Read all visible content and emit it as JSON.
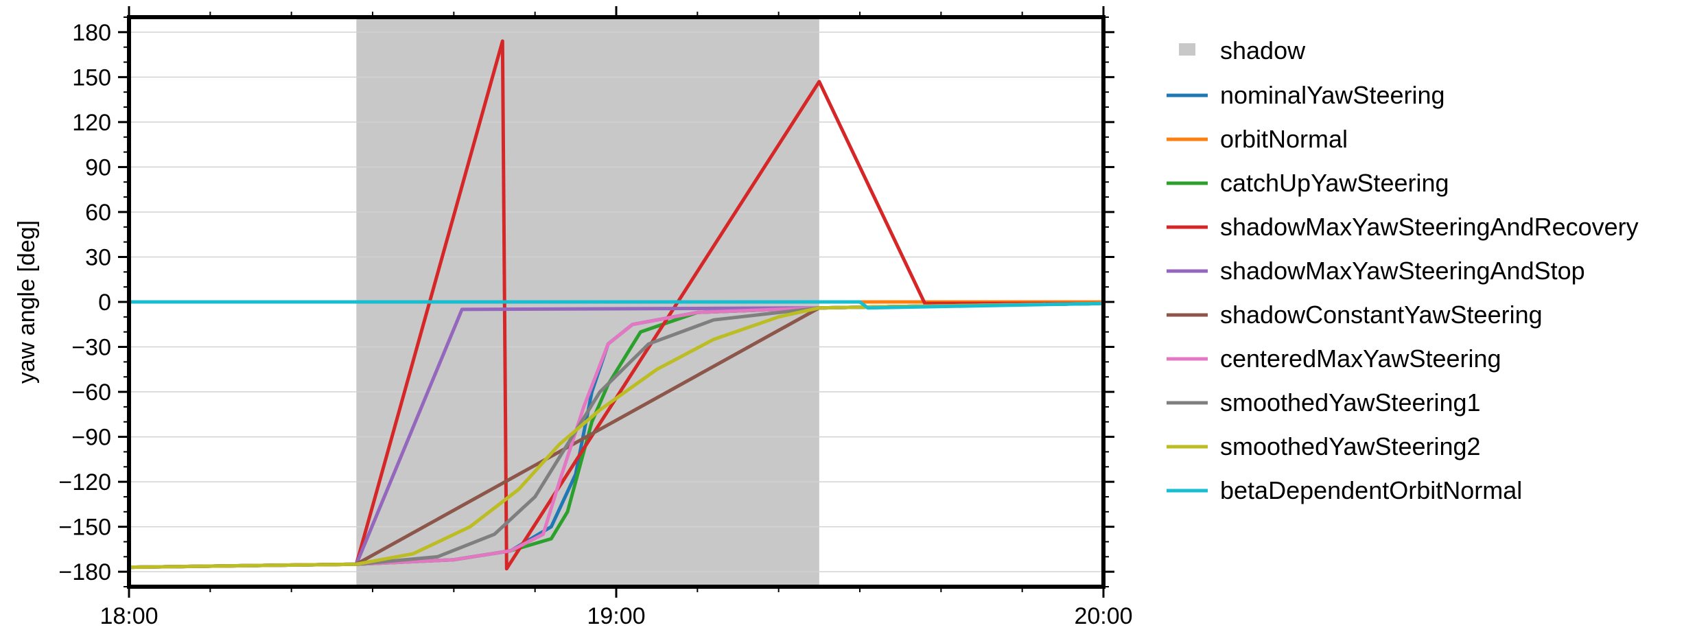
{
  "chart_data": {
    "type": "line",
    "title": "",
    "xlabel": "",
    "ylabel": "yaw angle [deg]",
    "x_ticks": [
      "18:00",
      "19:00",
      "20:00"
    ],
    "y_ticks": [
      "180",
      "150",
      "120",
      "90",
      "60",
      "30",
      "0",
      "−30",
      "−60",
      "−90",
      "−120",
      "−150",
      "−180"
    ],
    "xlim": [
      "18:00",
      "20:00"
    ],
    "ylim": [
      -190,
      190
    ],
    "grid": "horizontal",
    "legend_position": "right",
    "shadow": {
      "name": "shadow",
      "start": "18:28",
      "end": "19:25",
      "color": "#c8c8c8"
    },
    "series": [
      {
        "name": "nominalYawSteering",
        "color": "#1f77b4",
        "points": [
          [
            "18:00",
            -177
          ],
          [
            "18:28",
            -175
          ],
          [
            "18:40",
            -172
          ],
          [
            "18:47",
            -166
          ],
          [
            "18:52",
            -150
          ],
          [
            "18:55",
            -115
          ],
          [
            "18:57",
            -60
          ],
          [
            "18:59",
            -28
          ],
          [
            "19:02",
            -15
          ],
          [
            "19:10",
            -7
          ],
          [
            "19:25",
            -4
          ],
          [
            "19:35",
            -3
          ],
          [
            "20:00",
            -1
          ]
        ]
      },
      {
        "name": "orbitNormal",
        "color": "#ff7f0e",
        "points": [
          [
            "18:00",
            0
          ],
          [
            "20:00",
            0
          ]
        ]
      },
      {
        "name": "catchUpYawSteering",
        "color": "#2ca02c",
        "points": [
          [
            "18:00",
            -177
          ],
          [
            "18:28",
            -175
          ],
          [
            "18:40",
            -172
          ],
          [
            "18:47",
            -166
          ],
          [
            "18:52",
            -158
          ],
          [
            "18:54",
            -140
          ],
          [
            "18:56",
            -100
          ],
          [
            "18:57",
            -80
          ],
          [
            "18:59",
            -55
          ],
          [
            "19:03",
            -20
          ],
          [
            "19:10",
            -7
          ],
          [
            "19:25",
            -4
          ],
          [
            "19:35",
            -3
          ],
          [
            "20:00",
            -1
          ]
        ]
      },
      {
        "name": "shadowMaxYawSteeringAndRecovery",
        "color": "#d62728",
        "points": [
          [
            "18:00",
            -177
          ],
          [
            "18:28",
            -175
          ],
          [
            "18:46",
            174
          ],
          [
            "18:46:30",
            -178
          ],
          [
            "19:25",
            147
          ],
          [
            "19:38",
            -1
          ],
          [
            "20:00",
            -1
          ]
        ]
      },
      {
        "name": "shadowMaxYawSteeringAndStop",
        "color": "#9467bd",
        "points": [
          [
            "18:00",
            -177
          ],
          [
            "18:28",
            -175
          ],
          [
            "18:41",
            -5
          ],
          [
            "19:25",
            -4
          ],
          [
            "19:35",
            -3
          ],
          [
            "20:00",
            -1
          ]
        ]
      },
      {
        "name": "shadowConstantYawSteering",
        "color": "#8c564b",
        "points": [
          [
            "18:00",
            -177
          ],
          [
            "18:28",
            -175
          ],
          [
            "19:25",
            -4
          ],
          [
            "19:35",
            -3
          ],
          [
            "20:00",
            -1
          ]
        ]
      },
      {
        "name": "centeredMaxYawSteering",
        "color": "#e377c2",
        "points": [
          [
            "18:00",
            -177
          ],
          [
            "18:28",
            -175
          ],
          [
            "18:40",
            -172
          ],
          [
            "18:47",
            -166
          ],
          [
            "18:51",
            -155
          ],
          [
            "18:53",
            -120
          ],
          [
            "18:56",
            -70
          ],
          [
            "18:59",
            -28
          ],
          [
            "19:02",
            -15
          ],
          [
            "19:10",
            -7
          ],
          [
            "19:25",
            -4
          ],
          [
            "19:35",
            -3
          ],
          [
            "20:00",
            -1
          ]
        ]
      },
      {
        "name": "smoothedYawSteering1",
        "color": "#7f7f7f",
        "points": [
          [
            "18:00",
            -177
          ],
          [
            "18:28",
            -175
          ],
          [
            "18:38",
            -170
          ],
          [
            "18:45",
            -155
          ],
          [
            "18:50",
            -130
          ],
          [
            "18:54",
            -95
          ],
          [
            "18:58",
            -60
          ],
          [
            "19:04",
            -28
          ],
          [
            "19:12",
            -12
          ],
          [
            "19:25",
            -4
          ],
          [
            "19:35",
            -3
          ],
          [
            "20:00",
            -1
          ]
        ]
      },
      {
        "name": "smoothedYawSteering2",
        "color": "#bcbd22",
        "points": [
          [
            "18:00",
            -177
          ],
          [
            "18:28",
            -175
          ],
          [
            "18:35",
            -168
          ],
          [
            "18:42",
            -150
          ],
          [
            "18:48",
            -125
          ],
          [
            "18:53",
            -95
          ],
          [
            "18:58",
            -72
          ],
          [
            "19:05",
            -45
          ],
          [
            "19:12",
            -25
          ],
          [
            "19:20",
            -10
          ],
          [
            "19:25",
            -4
          ],
          [
            "19:35",
            -3
          ],
          [
            "20:00",
            -1
          ]
        ]
      },
      {
        "name": "betaDependentOrbitNormal",
        "color": "#17becf",
        "points": [
          [
            "18:00",
            0
          ],
          [
            "19:30",
            0
          ],
          [
            "19:31",
            -4
          ],
          [
            "20:00",
            -1
          ]
        ]
      }
    ]
  }
}
